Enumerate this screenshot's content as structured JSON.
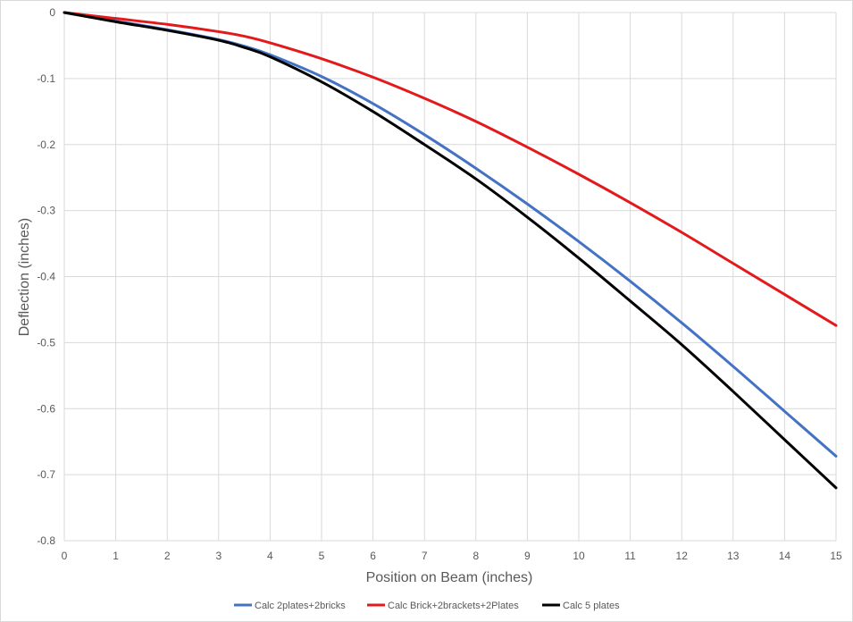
{
  "chart_data": {
    "type": "line",
    "title": "",
    "xlabel": "Position on Beam (inches)",
    "ylabel": "Deflection (inches)",
    "xlim": [
      0,
      15
    ],
    "ylim": [
      -0.8,
      0
    ],
    "x_ticks": [
      0,
      1,
      2,
      3,
      4,
      5,
      6,
      7,
      8,
      9,
      10,
      11,
      12,
      13,
      14,
      15
    ],
    "y_ticks": [
      0,
      -0.1,
      -0.2,
      -0.3,
      -0.4,
      -0.5,
      -0.6,
      -0.7,
      -0.8
    ],
    "x_tick_labels": [
      "0",
      "1",
      "2",
      "3",
      "4",
      "5",
      "6",
      "7",
      "8",
      "9",
      "10",
      "11",
      "12",
      "13",
      "14",
      "15"
    ],
    "y_tick_labels": [
      "0",
      "-0.1",
      "-0.2",
      "-0.3",
      "-0.4",
      "-0.5",
      "-0.6",
      "-0.7",
      "-0.8"
    ],
    "grid": true,
    "legend_position": "bottom",
    "x": [
      0,
      1,
      2,
      3,
      3.5,
      4,
      5,
      6,
      7,
      8,
      9,
      10,
      11,
      12,
      13,
      14,
      15
    ],
    "series": [
      {
        "name": "Calc 2plates+2bricks",
        "color": "#4472c4",
        "values": [
          0,
          -0.013,
          -0.026,
          -0.041,
          -0.051,
          -0.064,
          -0.097,
          -0.138,
          -0.185,
          -0.236,
          -0.29,
          -0.347,
          -0.407,
          -0.47,
          -0.536,
          -0.604,
          -0.672
        ]
      },
      {
        "name": "Calc Brick+2brackets+2Plates",
        "color": "#e31a1c",
        "values": [
          0,
          -0.009,
          -0.018,
          -0.029,
          -0.036,
          -0.046,
          -0.07,
          -0.098,
          -0.13,
          -0.165,
          -0.204,
          -0.245,
          -0.288,
          -0.333,
          -0.38,
          -0.427,
          -0.474
        ]
      },
      {
        "name": "Calc 5 plates",
        "color": "#000000",
        "values": [
          0,
          -0.014,
          -0.027,
          -0.042,
          -0.053,
          -0.067,
          -0.105,
          -0.15,
          -0.2,
          -0.252,
          -0.31,
          -0.372,
          -0.437,
          -0.503,
          -0.574,
          -0.647,
          -0.72
        ]
      }
    ]
  }
}
